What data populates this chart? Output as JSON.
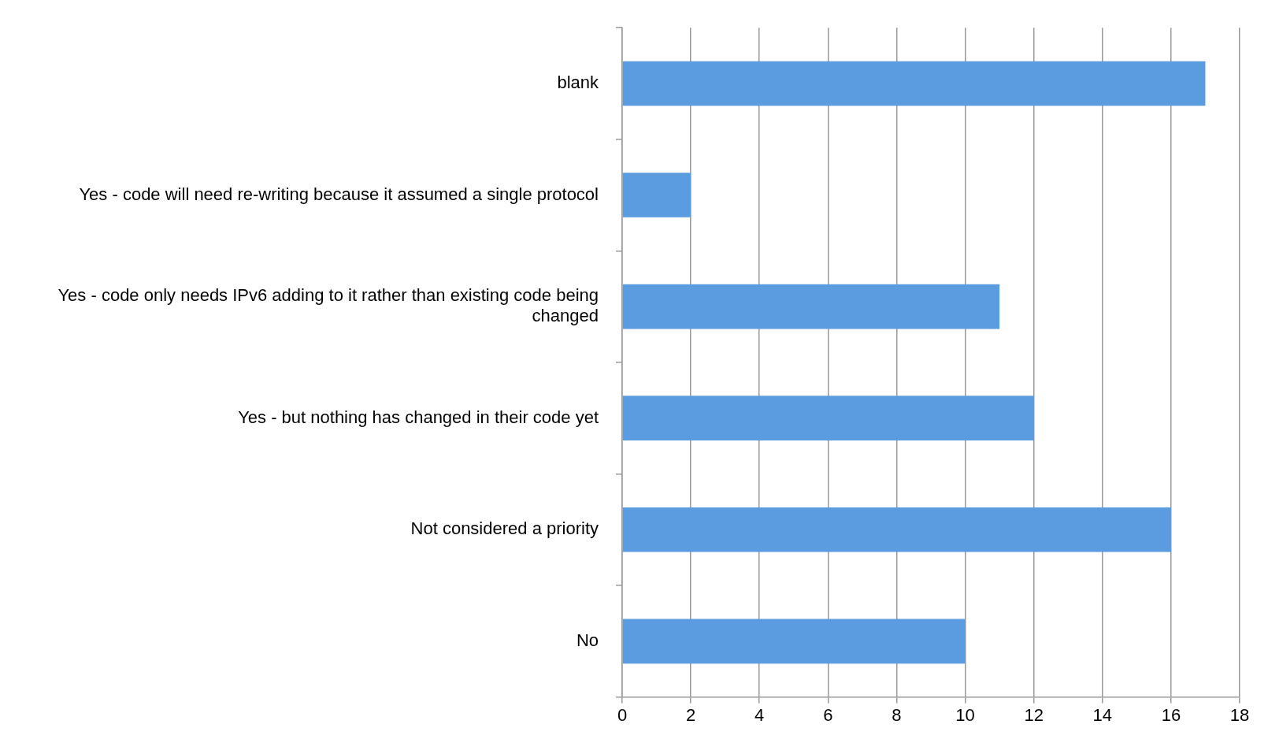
{
  "chart_data": {
    "type": "bar",
    "orientation": "horizontal",
    "categories": [
      "blank",
      "Yes - code will need re-writing because it assumed a single protocol",
      "Yes - code only needs IPv6 adding to it rather than existing code being changed",
      "Yes - but nothing has changed in their code yet",
      "Not considered a priority",
      "No"
    ],
    "values": [
      17,
      2,
      11,
      12,
      16,
      10
    ],
    "color": "#5b9be0",
    "xlim": [
      0,
      18
    ],
    "xticks": [
      0,
      2,
      4,
      6,
      8,
      10,
      12,
      14,
      16,
      18
    ],
    "grid": "x",
    "legend": false
  }
}
